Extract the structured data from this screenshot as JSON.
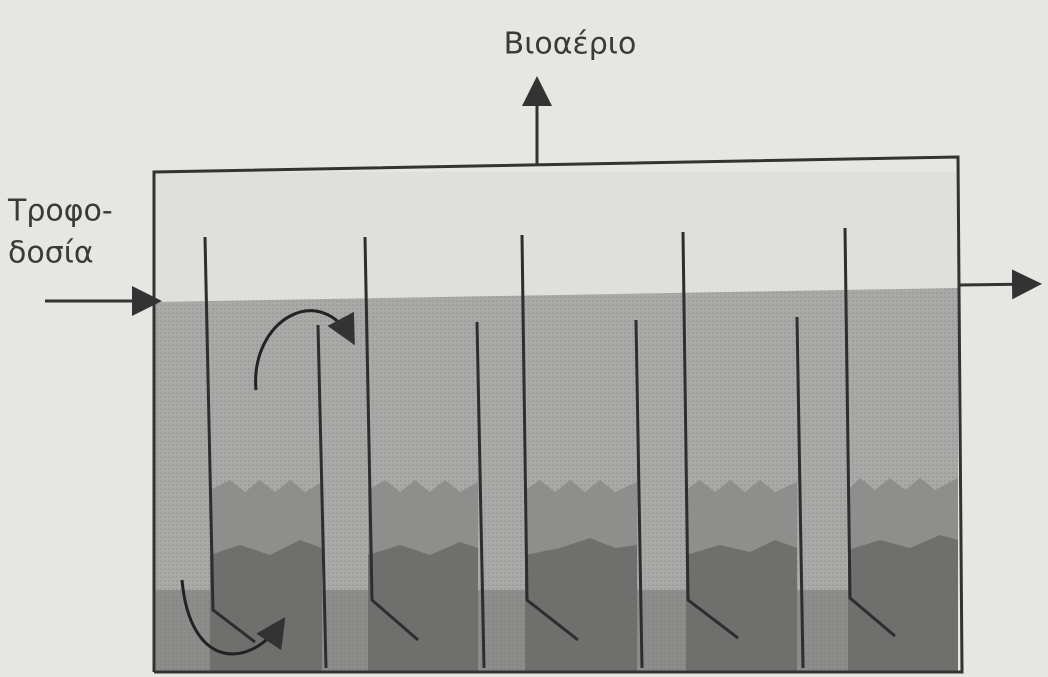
{
  "labels": {
    "biogas": "Βιοαέριο",
    "feed_line1": "Τροφο-",
    "feed_line2": "δοσία"
  }
}
